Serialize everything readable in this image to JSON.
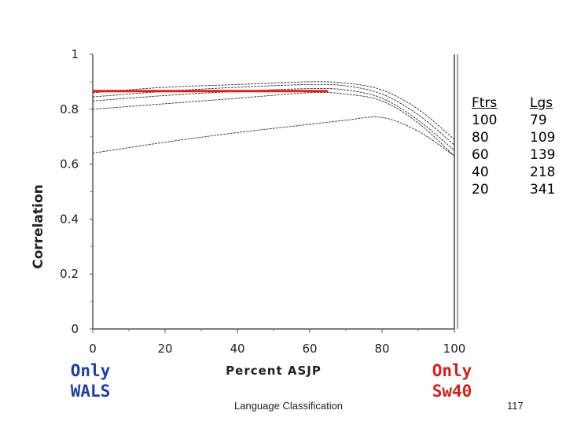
{
  "chart_data": {
    "type": "line",
    "title": "",
    "xlabel": "Percent ASJP",
    "ylabel": "Correlation",
    "xlim": [
      0,
      100
    ],
    "ylim": [
      0,
      1
    ],
    "xticks": [
      0,
      20,
      40,
      60,
      80,
      100
    ],
    "yticks": [
      0,
      0.2,
      0.4,
      0.6,
      0.8,
      1
    ],
    "ytick_labels": [
      "0",
      "0.2",
      "0.4",
      "0.6",
      "0.8",
      "1"
    ],
    "series": [
      {
        "name": "100 features",
        "x": [
          0,
          20,
          40,
          60,
          70,
          80,
          90,
          100
        ],
        "values": [
          0.86,
          0.88,
          0.89,
          0.9,
          0.895,
          0.87,
          0.8,
          0.69
        ]
      },
      {
        "name": "80 features",
        "x": [
          0,
          20,
          40,
          60,
          70,
          80,
          90,
          100
        ],
        "values": [
          0.845,
          0.865,
          0.88,
          0.89,
          0.885,
          0.855,
          0.78,
          0.67
        ]
      },
      {
        "name": "60 features",
        "x": [
          0,
          20,
          40,
          60,
          70,
          80,
          90,
          100
        ],
        "values": [
          0.83,
          0.85,
          0.865,
          0.875,
          0.87,
          0.84,
          0.76,
          0.65
        ]
      },
      {
        "name": "40 features",
        "x": [
          0,
          20,
          40,
          60,
          70,
          80,
          90,
          100
        ],
        "values": [
          0.8,
          0.82,
          0.84,
          0.86,
          0.855,
          0.83,
          0.75,
          0.63
        ]
      },
      {
        "name": "20 features",
        "x": [
          0,
          20,
          40,
          60,
          70,
          80,
          90,
          100
        ],
        "values": [
          0.64,
          0.68,
          0.715,
          0.745,
          0.76,
          0.77,
          0.72,
          0.63
        ]
      }
    ],
    "reference_line": {
      "x": [
        0,
        65
      ],
      "y": 0.866,
      "color": "#e0201c"
    },
    "legend": {
      "headers": [
        "Ftrs",
        "Lgs"
      ],
      "rows": [
        [
          "100",
          "79"
        ],
        [
          "80",
          "109"
        ],
        [
          "60",
          "139"
        ],
        [
          "40",
          "218"
        ],
        [
          "20",
          "341"
        ]
      ]
    }
  },
  "annotations": {
    "left": [
      "Only",
      "WALS"
    ],
    "right": [
      "Only",
      "Sw40"
    ],
    "left_color": "#1f3fa0",
    "right_color": "#d81e1e"
  },
  "footer": {
    "title": "Language Classification",
    "page": "117"
  }
}
